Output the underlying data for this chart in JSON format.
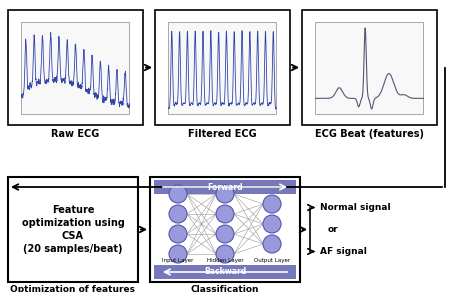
{
  "fig_width": 4.74,
  "fig_height": 2.92,
  "dpi": 100,
  "bg_color": "#ffffff",
  "ecg_color": "#3344aa",
  "beat_color": "#555577",
  "arrow_color": "#000000",
  "label_raw": "Raw ECG",
  "label_filtered": "Filtered ECG",
  "label_beat": "ECG Beat (features)",
  "label_opt": "Optimization of features",
  "label_class": "Classification\nusing LMNN",
  "text_feature": "Feature\noptimization using\nCSA\n(20 samples/beat)",
  "text_normal": "Normal signal",
  "text_or": "or",
  "text_af": "AF signal",
  "neuron_color": "#9999dd",
  "neuron_edge": "#5555aa",
  "forward_label": "Forward",
  "backward_label": "Backward",
  "input_label": "Input Layer",
  "hidden_label": "Hidden Layer",
  "output_label": "Output Layer",
  "fwd_color": "#6666bb",
  "bwd_color": "#6666bb"
}
